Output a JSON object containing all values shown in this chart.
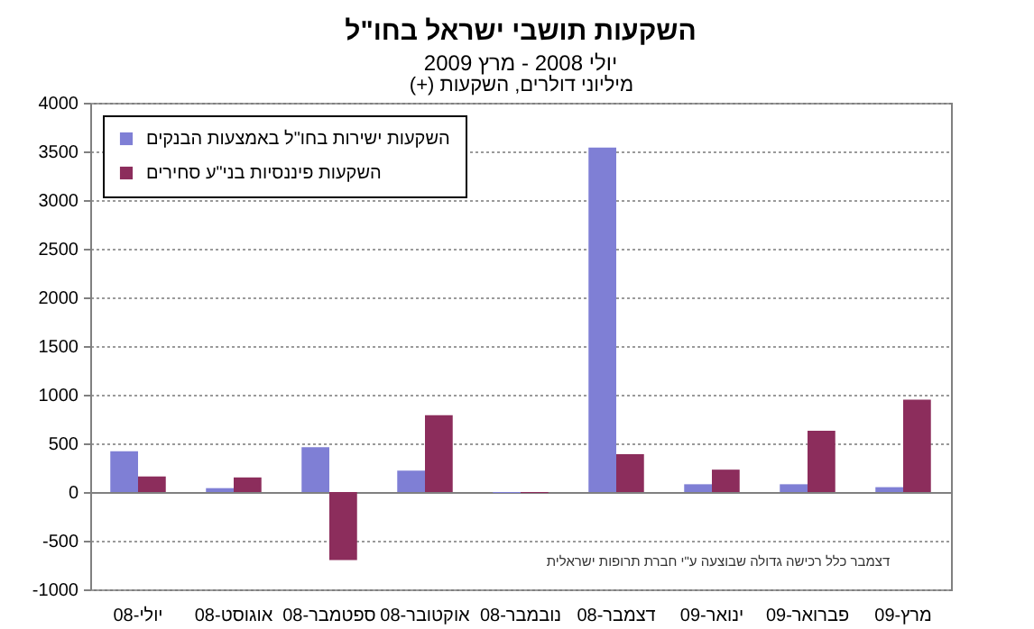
{
  "chart_data": {
    "type": "bar",
    "title": "השקעות תושבי ישראל בחו\"ל",
    "subtitle": "יולי 2008 - מרץ 2009",
    "ylabel": "מיליוני דולרים, השקעות (+)",
    "categories": [
      "יולי-08",
      "אוגוסט-08",
      "ספטמבר-08",
      "אוקטובר-08",
      "נובמבר-08",
      "דצמבר-08",
      "ינואר-09",
      "פברואר-09",
      "מרץ-09"
    ],
    "series": [
      {
        "name": "השקעות ישירות בחו\"ל באמצעות הבנקים",
        "color": "#7f7fd5",
        "values": [
          420,
          40,
          460,
          220,
          -10,
          3540,
          80,
          80,
          50
        ]
      },
      {
        "name": "השקעות פיננסיות בני\"ע סחירים",
        "color": "#8c2d5c",
        "values": [
          160,
          150,
          -700,
          790,
          -10,
          390,
          230,
          630,
          950
        ]
      }
    ],
    "ylim": [
      -1000,
      4000
    ],
    "yticks": [
      -1000,
      -500,
      0,
      500,
      1000,
      1500,
      2000,
      2500,
      3000,
      3500,
      4000
    ],
    "grid": "y",
    "legend": "top left",
    "annotations": [
      "דצמבר כלל רכישה גדולה שבוצעה ע\"י חברת תרופות ישראלית"
    ]
  }
}
